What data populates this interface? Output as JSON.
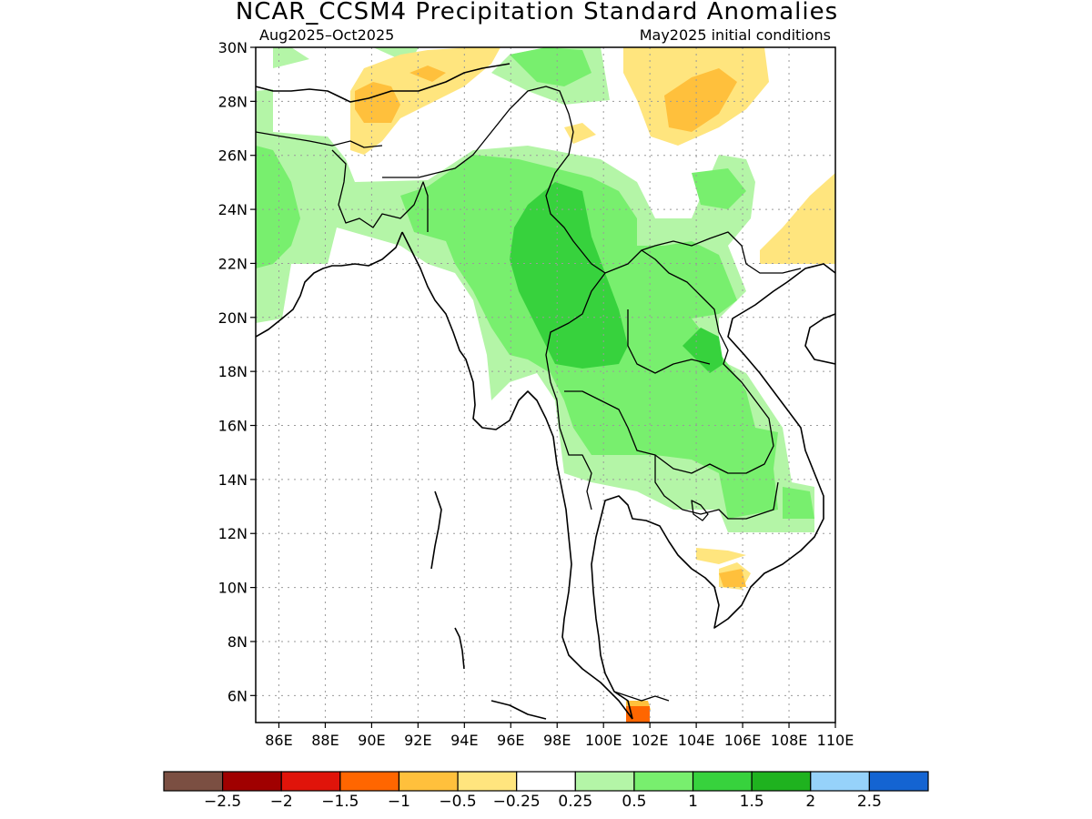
{
  "title": "NCAR_CCSM4 Precipitation Standard Anomalies",
  "subtitle_left": "Aug2025–Oct2025",
  "subtitle_right": "May2025 initial conditions",
  "map": {
    "lat_range": [
      5,
      30
    ],
    "lon_range": [
      85,
      110
    ],
    "lat_ticks": [
      "30N",
      "28N",
      "26N",
      "24N",
      "22N",
      "20N",
      "18N",
      "16N",
      "14N",
      "12N",
      "10N",
      "8N",
      "6N"
    ],
    "lon_ticks": [
      "86E",
      "88E",
      "90E",
      "92E",
      "94E",
      "96E",
      "98E",
      "100E",
      "102E",
      "104E",
      "106E",
      "108E",
      "110E"
    ],
    "grid": true
  },
  "colorbar": {
    "colors": [
      "#7b4f42",
      "#a00000",
      "#e0140a",
      "#ff6600",
      "#ffc03c",
      "#ffe57e",
      "#ffffff",
      "#b4f5a7",
      "#78ef6e",
      "#37d23d",
      "#1fb21f",
      "#96d2fa",
      "#1464d2"
    ],
    "labels": [
      "−2.5",
      "−2",
      "−1.5",
      "−1",
      "−0.5",
      "−0.25",
      "0.25",
      "0.5",
      "1",
      "1.5",
      "2",
      "2.5"
    ]
  }
}
